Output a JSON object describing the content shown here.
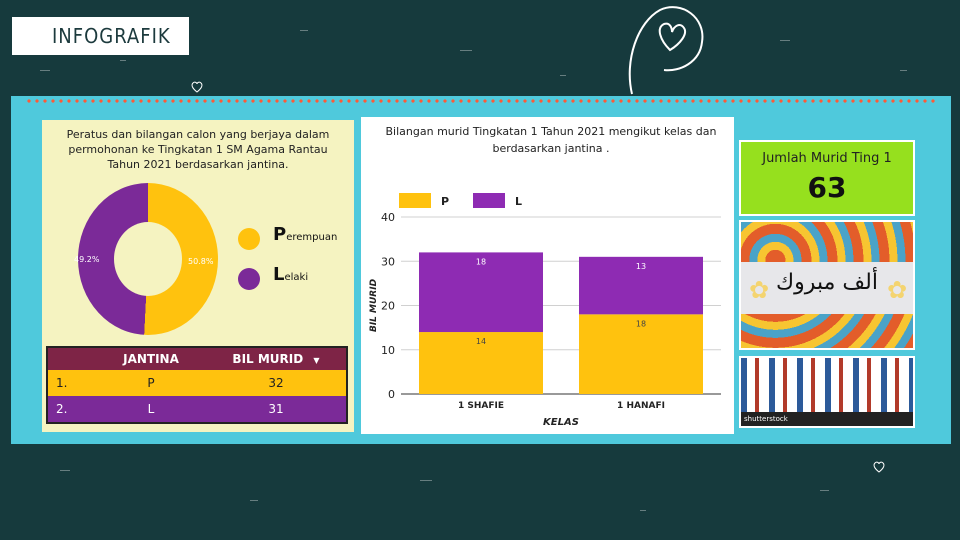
{
  "header": {
    "title": "INFOGRAFIK"
  },
  "donut_card": {
    "title": "Peratus dan bilangan calon yang berjaya dalam permohonan ke Tingkatan 1 SM Agama Rantau  Tahun 2021 berdasarkan jantina.",
    "slices": [
      {
        "label": "Perempuan",
        "percent_label": "50.8%",
        "value": 50.8,
        "color": "#ffc20e"
      },
      {
        "label": "Lelaki",
        "percent_label": "49.2%",
        "value": 49.2,
        "color": "#7b2a98"
      }
    ],
    "legend": [
      {
        "initial": "P",
        "rest": "erempuan"
      },
      {
        "initial": "L",
        "rest": "elaki"
      }
    ]
  },
  "table": {
    "headers": [
      "JANTINA",
      "BIL MURID"
    ],
    "sort_icon": "caret-down-icon",
    "rows": [
      {
        "index": "1.",
        "jantina": "P",
        "bil_murid": "32"
      },
      {
        "index": "2.",
        "jantina": "L",
        "bil_murid": "31"
      }
    ]
  },
  "chart_card": {
    "title": "Bilangan murid Tingkatan 1 Tahun 2021 mengikut kelas dan berdasarkan jantina ."
  },
  "chart_data": {
    "type": "bar",
    "stacked": true,
    "categories": [
      "1 SHAFIE",
      "1 HANAFI"
    ],
    "series": [
      {
        "name": "P",
        "values": [
          14,
          18
        ],
        "color": "#ffc20e"
      },
      {
        "name": "L",
        "values": [
          18,
          13
        ],
        "color": "#8e2bb3"
      }
    ],
    "xlabel": "KELAS",
    "ylabel": "BIL MURID",
    "ylim": [
      0,
      40
    ],
    "yticks": [
      0,
      10,
      20,
      30,
      40
    ],
    "grid": true,
    "legend": "top-left"
  },
  "count_box": {
    "label": "Jumlah Murid Ting 1",
    "value": "63"
  },
  "congrats_image": {
    "text": "ألف مبروك"
  },
  "pattern_image": {
    "watermark": "shutterstock"
  }
}
